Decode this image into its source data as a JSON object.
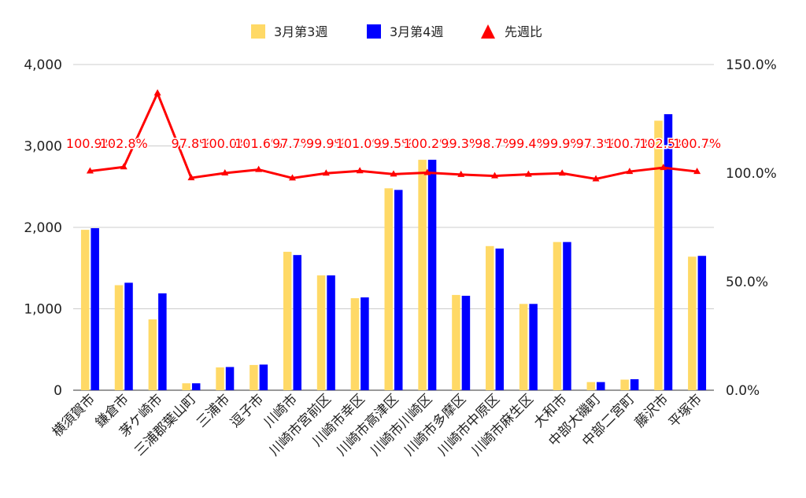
{
  "chart_data": {
    "type": "bar",
    "categories": [
      "横須賀市",
      "鎌倉市",
      "茅ケ崎市",
      "三浦郡葉山町",
      "三浦市",
      "逗子市",
      "川崎市",
      "川崎市宮前区",
      "川崎市幸区",
      "川崎市高津区",
      "川崎市川崎区",
      "川崎市多摩区",
      "川崎市中原区",
      "川崎市麻生区",
      "大和市",
      "中部大磯町",
      "中部二宮町",
      "藤沢市",
      "平塚市"
    ],
    "series": [
      {
        "name": "3月第3週",
        "type": "bar",
        "axis": "left",
        "color": "#ffd966",
        "values": [
          1970,
          1290,
          870,
          85,
          280,
          310,
          1700,
          1410,
          1130,
          2480,
          2830,
          1170,
          1770,
          1060,
          1820,
          100,
          130,
          3310,
          1640
        ]
      },
      {
        "name": "3月第4週",
        "type": "bar",
        "axis": "left",
        "color": "#0000ff",
        "values": [
          1990,
          1320,
          1190,
          85,
          285,
          315,
          1660,
          1410,
          1140,
          2460,
          2830,
          1160,
          1740,
          1060,
          1820,
          100,
          135,
          3390,
          1650
        ]
      },
      {
        "name": "先週比",
        "type": "line",
        "axis": "right",
        "color": "#ff0000",
        "values": [
          100.9,
          102.8,
          136.8,
          97.8,
          100.0,
          101.6,
          97.7,
          99.9,
          101.0,
          99.5,
          100.2,
          99.3,
          98.7,
          99.4,
          99.9,
          97.3,
          100.7,
          102.5,
          100.7
        ],
        "labels": [
          "100.9%",
          "102.8%",
          "",
          "97.8%",
          "100.0%",
          "101.6%",
          "97.7%",
          "99.9%",
          "101.0%",
          "99.5%",
          "100.2%",
          "99.3%",
          "98.7%",
          "99.4%",
          "99.9%",
          "97.3%",
          "100.7%",
          "102.5%",
          "100.7%"
        ]
      }
    ],
    "y_left": {
      "range": [
        0,
        4000
      ],
      "ticks": [
        "0",
        "1,000",
        "2,000",
        "3,000",
        "4,000"
      ]
    },
    "y_right": {
      "range": [
        0,
        150
      ],
      "ticks": [
        "0.0%",
        "50.0%",
        "100.0%",
        "150.0%"
      ]
    },
    "grid": true,
    "legend_position": "top"
  }
}
